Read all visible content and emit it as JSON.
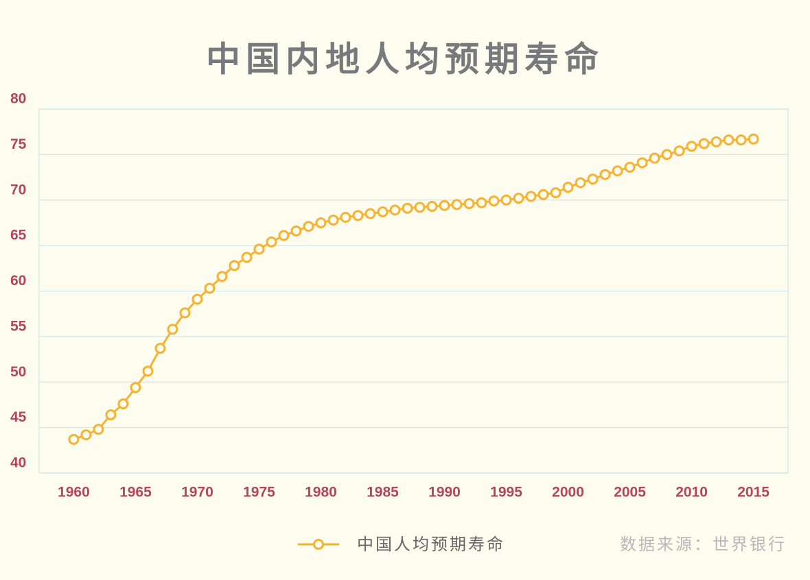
{
  "chart_data": {
    "type": "line",
    "title": "中国内地人均预期寿命",
    "source": "数据来源：世界银行",
    "x": [
      1960,
      1961,
      1962,
      1963,
      1964,
      1965,
      1966,
      1967,
      1968,
      1969,
      1970,
      1971,
      1972,
      1973,
      1974,
      1975,
      1976,
      1977,
      1978,
      1979,
      1980,
      1981,
      1982,
      1983,
      1984,
      1985,
      1986,
      1987,
      1988,
      1989,
      1990,
      1991,
      1992,
      1993,
      1994,
      1995,
      1996,
      1997,
      1998,
      1999,
      2000,
      2001,
      2002,
      2003,
      2004,
      2005,
      2006,
      2007,
      2008,
      2009,
      2010,
      2011,
      2012,
      2013,
      2014,
      2015
    ],
    "series": [
      {
        "name": "中国人均预期寿命",
        "color": "#f5b335",
        "values": [
          43.7,
          44.2,
          44.8,
          46.4,
          47.6,
          49.4,
          51.2,
          53.7,
          55.8,
          57.6,
          59.1,
          60.3,
          61.6,
          62.8,
          63.7,
          64.6,
          65.4,
          66.1,
          66.6,
          67.1,
          67.5,
          67.8,
          68.1,
          68.3,
          68.5,
          68.7,
          68.9,
          69.1,
          69.2,
          69.3,
          69.4,
          69.5,
          69.6,
          69.7,
          69.9,
          70.0,
          70.2,
          70.4,
          70.6,
          70.8,
          71.4,
          71.9,
          72.3,
          72.8,
          73.2,
          73.6,
          74.1,
          74.6,
          75.0,
          75.4,
          75.9,
          76.2,
          76.4,
          76.6,
          76.6,
          76.7
        ]
      }
    ],
    "xlim": [
      1957.2,
      2017.8
    ],
    "xticks": [
      1960,
      1965,
      1970,
      1975,
      1980,
      1985,
      1990,
      1995,
      2000,
      2005,
      2010,
      2015
    ],
    "ylim": [
      40,
      80
    ],
    "yticks": [
      40,
      45,
      50,
      55,
      60,
      65,
      70,
      75,
      80
    ],
    "grid": true
  }
}
